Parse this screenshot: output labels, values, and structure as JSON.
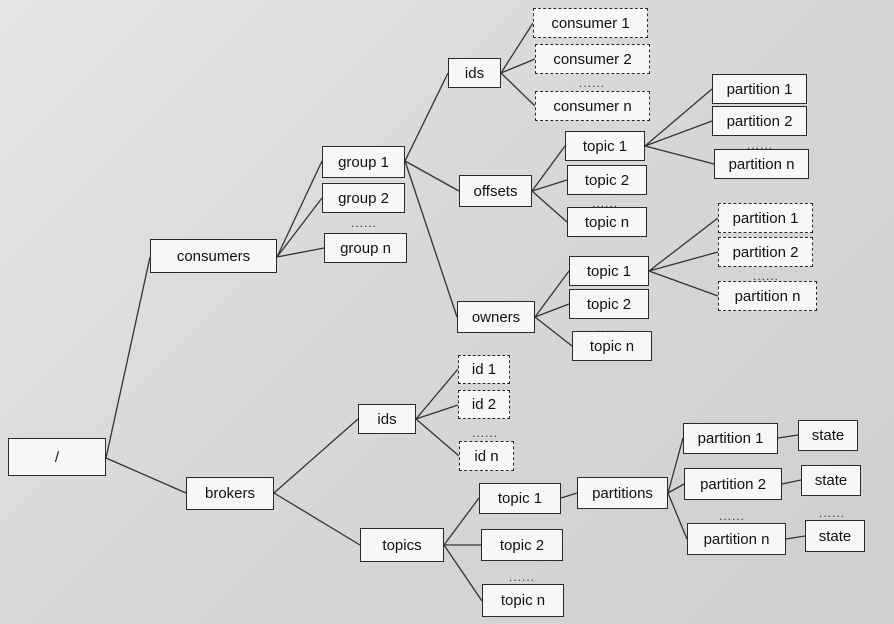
{
  "tree": {
    "root": "/",
    "consumers": {
      "label": "consumers",
      "groups": [
        "group 1",
        "group 2",
        "group n"
      ],
      "ids": "ids",
      "consumer_items": [
        "consumer 1",
        "consumer 2",
        "consumer n"
      ],
      "offsets": "offsets",
      "offset_topics": [
        "topic 1",
        "topic 2",
        "topic n"
      ],
      "offset_partitions": [
        "partition 1",
        "partition 2",
        "partition n"
      ],
      "owners": "owners",
      "owner_topics": [
        "topic 1",
        "topic 2",
        "topic n"
      ],
      "owner_partitions": [
        "partition 1",
        "partition 2",
        "partition n"
      ]
    },
    "brokers": {
      "label": "brokers",
      "ids": "ids",
      "id_items": [
        "id 1",
        "id 2",
        "id n"
      ],
      "topics": "topics",
      "topic_items": [
        "topic 1",
        "topic 2",
        "topic n"
      ],
      "partitions": "partitions",
      "partition_items": [
        "partition 1",
        "partition 2",
        "partition n"
      ],
      "state": "state"
    },
    "ellipsis": "......"
  }
}
